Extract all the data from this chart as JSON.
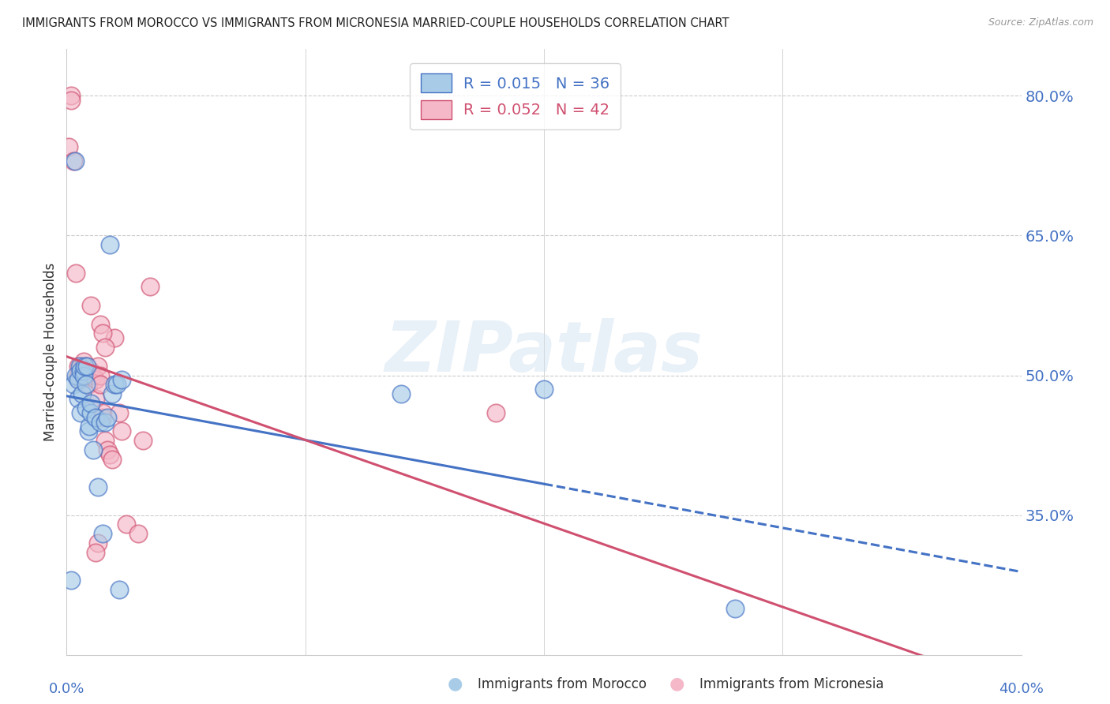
{
  "title": "IMMIGRANTS FROM MOROCCO VS IMMIGRANTS FROM MICRONESIA MARRIED-COUPLE HOUSEHOLDS CORRELATION CHART",
  "source": "Source: ZipAtlas.com",
  "ylabel": "Married-couple Households",
  "yticks": [
    35.0,
    50.0,
    65.0,
    80.0
  ],
  "ytick_labels": [
    "35.0%",
    "50.0%",
    "65.0%",
    "80.0%"
  ],
  "legend_blue_r": "0.015",
  "legend_blue_n": "36",
  "legend_pink_r": "0.052",
  "legend_pink_n": "42",
  "legend_blue_label": "Immigrants from Morocco",
  "legend_pink_label": "Immigrants from Micronesia",
  "blue_color": "#a8cce8",
  "pink_color": "#f4b8c8",
  "trend_blue_color": "#4472c4",
  "trend_pink_color": "#d05070",
  "watermark": "ZIPatlas",
  "background_color": "#ffffff",
  "grid_color": "#cccccc",
  "title_color": "#222222",
  "label_color": "#4472c4",
  "xmin": 0.0,
  "xmax": 40.0,
  "ymin": 20.0,
  "ymax": 85.0,
  "blue_solid_end": 20.0,
  "blue_trend_start": 0.0,
  "blue_trend_end": 40.0,
  "pink_trend_start": 0.0,
  "pink_trend_end": 40.0,
  "blue_x": [
    0.2,
    0.3,
    0.35,
    0.4,
    0.5,
    0.5,
    0.55,
    0.6,
    0.6,
    0.65,
    0.7,
    0.7,
    0.75,
    0.8,
    0.8,
    0.85,
    0.9,
    0.95,
    1.0,
    1.0,
    1.1,
    1.2,
    1.3,
    1.4,
    1.5,
    1.6,
    1.7,
    1.8,
    1.9,
    2.0,
    2.1,
    2.2,
    2.3,
    14.0,
    20.0,
    28.0
  ],
  "blue_y": [
    28.0,
    49.0,
    73.0,
    50.0,
    47.5,
    49.5,
    51.0,
    46.0,
    50.5,
    48.0,
    50.5,
    50.0,
    51.0,
    46.5,
    49.0,
    51.0,
    44.0,
    44.5,
    46.0,
    47.0,
    42.0,
    45.5,
    38.0,
    45.0,
    33.0,
    45.0,
    45.5,
    64.0,
    48.0,
    49.0,
    49.0,
    27.0,
    49.5,
    48.0,
    48.5,
    25.0
  ],
  "pink_x": [
    0.1,
    0.2,
    0.2,
    0.3,
    0.4,
    0.5,
    0.5,
    0.6,
    0.6,
    0.7,
    0.7,
    0.8,
    0.8,
    0.9,
    1.0,
    1.0,
    1.1,
    1.2,
    1.2,
    1.3,
    1.4,
    1.4,
    1.5,
    1.5,
    1.6,
    1.7,
    1.8,
    1.9,
    2.0,
    2.2,
    2.3,
    2.5,
    3.0,
    3.2,
    3.5,
    1.0,
    1.4,
    1.5,
    1.3,
    1.6,
    18.0,
    1.2
  ],
  "pink_y": [
    74.5,
    80.0,
    79.5,
    73.0,
    61.0,
    50.0,
    51.0,
    49.5,
    51.0,
    50.0,
    51.5,
    51.0,
    50.0,
    49.0,
    50.0,
    50.5,
    50.0,
    47.5,
    49.5,
    51.0,
    50.0,
    49.0,
    45.5,
    46.0,
    43.0,
    42.0,
    41.5,
    41.0,
    54.0,
    46.0,
    44.0,
    34.0,
    33.0,
    43.0,
    59.5,
    57.5,
    55.5,
    54.5,
    32.0,
    53.0,
    46.0,
    31.0
  ]
}
